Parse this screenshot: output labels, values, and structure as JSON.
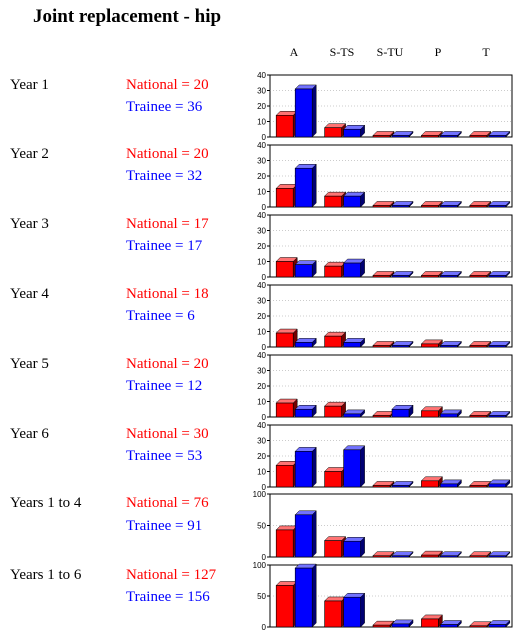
{
  "title": "Joint replacement - hip",
  "columns": [
    "A",
    "S-TS",
    "S-TU",
    "P",
    "T"
  ],
  "colors": {
    "national": "#ff0000",
    "trainee": "#0000ff"
  },
  "rows": [
    {
      "label": "Year 1",
      "national_text": "National = 20",
      "trainee_text": "Trainee = 36"
    },
    {
      "label": "Year 2",
      "national_text": "National = 20",
      "trainee_text": "Trainee = 32"
    },
    {
      "label": "Year 3",
      "national_text": "National = 17",
      "trainee_text": "Trainee = 17"
    },
    {
      "label": "Year 4",
      "national_text": "National = 18",
      "trainee_text": "Trainee = 6"
    },
    {
      "label": "Year 5",
      "national_text": "National = 20",
      "trainee_text": "Trainee = 12"
    },
    {
      "label": "Year 6",
      "national_text": "National = 30",
      "trainee_text": "Trainee = 53"
    },
    {
      "label": "Years 1 to 4",
      "national_text": "National = 76",
      "trainee_text": "Trainee = 91"
    },
    {
      "label": "Years 1 to 6",
      "national_text": "National = 127",
      "trainee_text": "Trainee = 156"
    }
  ],
  "chart_data": [
    {
      "type": "bar",
      "categories": [
        "A",
        "S-TS",
        "S-TU",
        "P",
        "T"
      ],
      "ylim": [
        0,
        40
      ],
      "yticks": [
        "0",
        "10",
        "20",
        "30",
        "40"
      ],
      "grid": true,
      "series": [
        {
          "values": [
            14,
            6,
            1,
            1,
            1
          ]
        },
        {
          "values": [
            31,
            5,
            1,
            1,
            1
          ]
        }
      ]
    },
    {
      "type": "bar",
      "categories": [
        "A",
        "S-TS",
        "S-TU",
        "P",
        "T"
      ],
      "ylim": [
        0,
        40
      ],
      "yticks": [
        "0",
        "10",
        "20",
        "30",
        "40"
      ],
      "grid": true,
      "series": [
        {
          "values": [
            12,
            7,
            1,
            1,
            1
          ]
        },
        {
          "values": [
            25,
            7,
            1,
            1,
            1
          ]
        }
      ]
    },
    {
      "type": "bar",
      "categories": [
        "A",
        "S-TS",
        "S-TU",
        "P",
        "T"
      ],
      "ylim": [
        0,
        40
      ],
      "yticks": [
        "0",
        "10",
        "20",
        "30",
        "40"
      ],
      "grid": true,
      "series": [
        {
          "values": [
            10,
            7,
            1,
            1,
            1
          ]
        },
        {
          "values": [
            8,
            9,
            1,
            1,
            1
          ]
        }
      ]
    },
    {
      "type": "bar",
      "categories": [
        "A",
        "S-TS",
        "S-TU",
        "P",
        "T"
      ],
      "ylim": [
        0,
        40
      ],
      "yticks": [
        "0",
        "10",
        "20",
        "30",
        "40"
      ],
      "grid": true,
      "series": [
        {
          "values": [
            9,
            7,
            1,
            2,
            1
          ]
        },
        {
          "values": [
            3,
            3,
            1,
            1,
            1
          ]
        }
      ]
    },
    {
      "type": "bar",
      "categories": [
        "A",
        "S-TS",
        "S-TU",
        "P",
        "T"
      ],
      "ylim": [
        0,
        40
      ],
      "yticks": [
        "0",
        "10",
        "20",
        "30",
        "40"
      ],
      "grid": true,
      "series": [
        {
          "values": [
            9,
            7,
            1,
            4,
            1
          ]
        },
        {
          "values": [
            5,
            2,
            5,
            2,
            1
          ]
        }
      ]
    },
    {
      "type": "bar",
      "categories": [
        "A",
        "S-TS",
        "S-TU",
        "P",
        "T"
      ],
      "ylim": [
        0,
        40
      ],
      "yticks": [
        "0",
        "10",
        "20",
        "30",
        "40"
      ],
      "grid": true,
      "series": [
        {
          "values": [
            14,
            10,
            1,
            4,
            1
          ]
        },
        {
          "values": [
            23,
            24,
            1,
            2,
            2
          ]
        }
      ]
    },
    {
      "type": "bar",
      "categories": [
        "A",
        "S-TS",
        "S-TU",
        "P",
        "T"
      ],
      "ylim": [
        0,
        100
      ],
      "yticks": [
        "0",
        "50",
        "100"
      ],
      "grid": true,
      "series": [
        {
          "values": [
            43,
            26,
            2,
            3,
            2
          ]
        },
        {
          "values": [
            67,
            25,
            2,
            2,
            2
          ]
        }
      ]
    },
    {
      "type": "bar",
      "categories": [
        "A",
        "S-TS",
        "S-TU",
        "P",
        "T"
      ],
      "ylim": [
        0,
        100
      ],
      "yticks": [
        "0",
        "50",
        "100"
      ],
      "grid": true,
      "series": [
        {
          "values": [
            67,
            42,
            3,
            13,
            2
          ]
        },
        {
          "values": [
            95,
            48,
            5,
            4,
            4
          ]
        }
      ]
    }
  ]
}
